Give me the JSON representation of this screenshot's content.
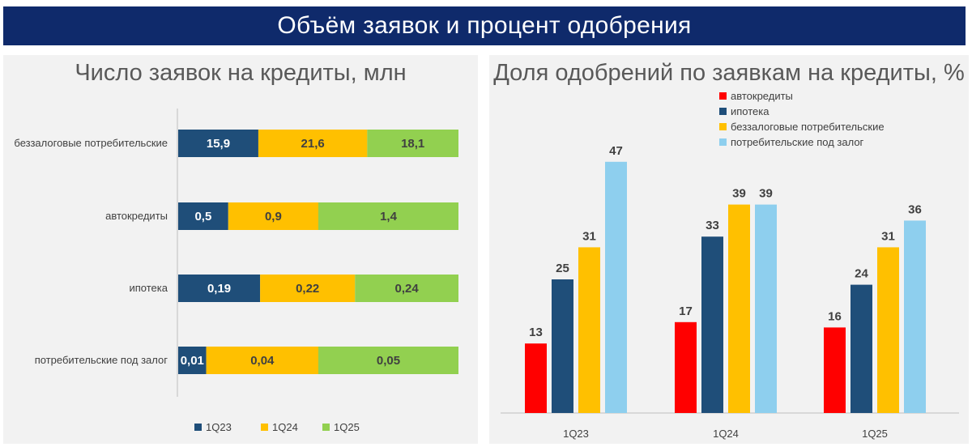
{
  "header": {
    "title": "Объём заявок и процент одобрения"
  },
  "colors": {
    "banner_bg": "#0f2a6b",
    "q1q23": "#1f4e79",
    "q1q24": "#ffc000",
    "q1q25": "#92d050",
    "auto": "#ff0000",
    "mortgage": "#1f4e79",
    "unsecured": "#ffc000",
    "secured": "#8ecfee"
  },
  "chart_data": [
    {
      "type": "bar",
      "orientation": "horizontal",
      "stacked": true,
      "title": "Число заявок на кредиты, млн",
      "categories": [
        "беззалоговые потребительские",
        "автокредиты",
        "ипотека",
        "потребительские под залог"
      ],
      "series": [
        {
          "name": "1Q23",
          "values": [
            15.9,
            0.5,
            0.19,
            0.01
          ],
          "labels": [
            "15,9",
            "0,5",
            "0,19",
            "0,01"
          ]
        },
        {
          "name": "1Q24",
          "values": [
            21.6,
            0.9,
            0.22,
            0.04
          ],
          "labels": [
            "21,6",
            "0,9",
            "0,22",
            "0,04"
          ]
        },
        {
          "name": "1Q25",
          "values": [
            18.1,
            1.4,
            0.24,
            0.05
          ],
          "labels": [
            "18,1",
            "1,4",
            "0,24",
            "0,05"
          ]
        }
      ],
      "normalized_per_category": true,
      "legend_position": "bottom"
    },
    {
      "type": "bar",
      "title": "Доля одобрений по заявкам на кредиты, %",
      "categories": [
        "1Q23",
        "1Q24",
        "1Q25"
      ],
      "series": [
        {
          "name": "автокредиты",
          "values": [
            13,
            17,
            16
          ]
        },
        {
          "name": "ипотека",
          "values": [
            25,
            33,
            24
          ]
        },
        {
          "name": "беззалоговые потребительские",
          "values": [
            31,
            39,
            31
          ]
        },
        {
          "name": "потребительские под залог",
          "values": [
            47,
            39,
            36
          ]
        }
      ],
      "ylim": [
        0,
        50
      ],
      "grid": false,
      "legend_position": "top"
    }
  ]
}
